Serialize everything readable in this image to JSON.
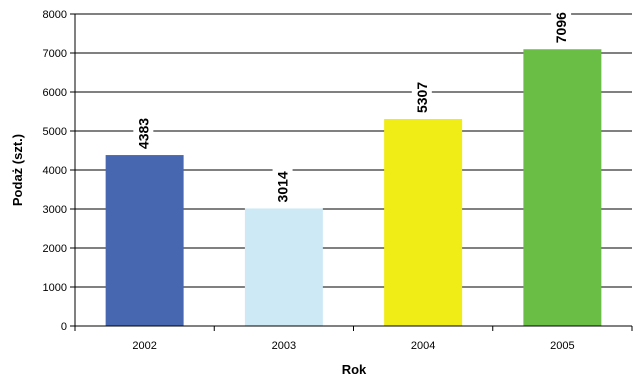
{
  "chart_data": {
    "type": "bar",
    "categories": [
      "2002",
      "2003",
      "2004",
      "2005"
    ],
    "values": [
      4383,
      3014,
      5307,
      7096
    ],
    "data_labels": [
      "4383",
      "3014",
      "5307",
      "7096"
    ],
    "colors": [
      "#4767b1",
      "#cde9f5",
      "#f0ec16",
      "#6bbe45"
    ],
    "xlabel": "Rok",
    "ylabel": "Podaż (szt.)",
    "ylim": [
      0,
      8000
    ],
    "yticks": [
      0,
      1000,
      2000,
      3000,
      4000,
      5000,
      6000,
      7000,
      8000
    ],
    "grid": true,
    "legend": "none"
  }
}
